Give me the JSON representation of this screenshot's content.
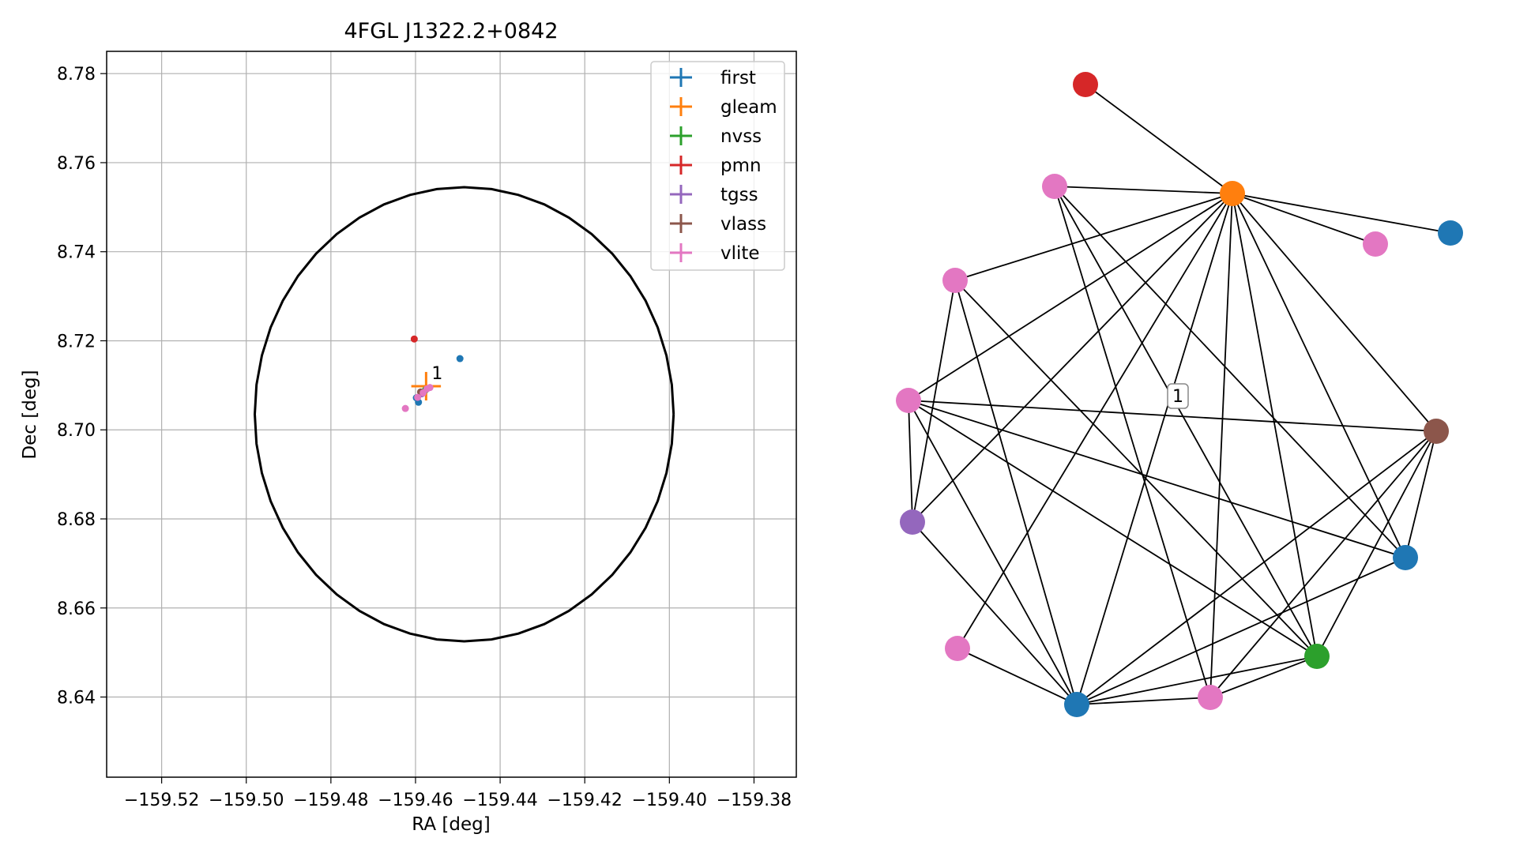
{
  "chart_data": [
    {
      "type": "scatter",
      "title": "4FGL J1322.2+0842",
      "xlabel": "RA [deg]",
      "ylabel": "Dec [deg]",
      "xlim": [
        -159.533,
        -159.37
      ],
      "ylim": [
        8.622,
        8.785
      ],
      "xticks": [
        -159.52,
        -159.5,
        -159.48,
        -159.46,
        -159.44,
        -159.42,
        -159.4,
        -159.38
      ],
      "xtick_labels": [
        "−159.52",
        "−159.50",
        "−159.48",
        "−159.46",
        "−159.44",
        "−159.42",
        "−159.40",
        "−159.38"
      ],
      "yticks": [
        8.64,
        8.66,
        8.68,
        8.7,
        8.72,
        8.74,
        8.76,
        8.78
      ],
      "ytick_labels": [
        "8.64",
        "8.66",
        "8.68",
        "8.70",
        "8.72",
        "8.74",
        "8.76",
        "8.78"
      ],
      "grid": true,
      "legend_position": "top-right",
      "ellipse": {
        "center": [
          -159.4485,
          8.7035
        ],
        "semi_axis_ra": 0.0495,
        "semi_axis_dec": 0.051,
        "color": "#000000"
      },
      "series": [
        {
          "name": "first",
          "color": "#1f77b4",
          "points": [
            [
              -159.4495,
              8.716
            ],
            [
              -159.4593,
              8.7062
            ],
            [
              -159.4598,
              8.7072
            ]
          ]
        },
        {
          "name": "gleam",
          "color": "#ff7f0e",
          "points": [
            [
              -159.4575,
              8.7098
            ]
          ],
          "xerr": 0.0035,
          "yerr": 0.0032
        },
        {
          "name": "nvss",
          "color": "#2ca02c",
          "points": [
            [
              -159.4576,
              8.709
            ]
          ]
        },
        {
          "name": "pmn",
          "color": "#d62728",
          "points": [
            [
              -159.4603,
              8.7204
            ]
          ]
        },
        {
          "name": "tgss",
          "color": "#9467bd",
          "points": [
            [
              -159.4585,
              8.7081
            ]
          ]
        },
        {
          "name": "vlass",
          "color": "#8c564b",
          "points": [
            [
              -159.4588,
              8.7085
            ]
          ]
        },
        {
          "name": "vlite",
          "color": "#e377c2",
          "points": [
            [
              -159.4624,
              8.7048
            ],
            [
              -159.4595,
              8.7073
            ],
            [
              -159.4582,
              8.7083
            ],
            [
              -159.4573,
              8.7092
            ],
            [
              -159.4566,
              8.7095
            ]
          ]
        }
      ],
      "annotation": {
        "text": "1",
        "x": -159.4562,
        "y": 8.7114
      }
    },
    {
      "type": "network",
      "edge_color": "#000000",
      "label_box": {
        "text": "1"
      },
      "nodes": [
        {
          "id": "n0",
          "color": "#d62728"
        },
        {
          "id": "n1",
          "color": "#ff7f0e"
        },
        {
          "id": "n2",
          "color": "#e377c2"
        },
        {
          "id": "n3",
          "color": "#1f77b4"
        },
        {
          "id": "n4",
          "color": "#e377c2"
        },
        {
          "id": "n5",
          "color": "#e377c2"
        },
        {
          "id": "n6",
          "color": "#e377c2"
        },
        {
          "id": "n7",
          "color": "#8c564b"
        },
        {
          "id": "n8",
          "color": "#9467bd"
        },
        {
          "id": "n9",
          "color": "#1f77b4"
        },
        {
          "id": "n10",
          "color": "#e377c2"
        },
        {
          "id": "n11",
          "color": "#2ca02c"
        },
        {
          "id": "n12",
          "color": "#e377c2"
        },
        {
          "id": "n13",
          "color": "#1f77b4"
        }
      ],
      "edges": [
        [
          "n0",
          "n1"
        ],
        [
          "n1",
          "n2"
        ],
        [
          "n1",
          "n3"
        ],
        [
          "n1",
          "n4"
        ],
        [
          "n1",
          "n5"
        ],
        [
          "n1",
          "n6"
        ],
        [
          "n1",
          "n7"
        ],
        [
          "n1",
          "n8"
        ],
        [
          "n1",
          "n9"
        ],
        [
          "n1",
          "n10"
        ],
        [
          "n1",
          "n11"
        ],
        [
          "n1",
          "n12"
        ],
        [
          "n1",
          "n13"
        ],
        [
          "n4",
          "n12"
        ],
        [
          "n4",
          "n11"
        ],
        [
          "n4",
          "n9"
        ],
        [
          "n5",
          "n8"
        ],
        [
          "n5",
          "n13"
        ],
        [
          "n5",
          "n11"
        ],
        [
          "n6",
          "n7"
        ],
        [
          "n6",
          "n8"
        ],
        [
          "n6",
          "n13"
        ],
        [
          "n6",
          "n9"
        ],
        [
          "n6",
          "n11"
        ],
        [
          "n7",
          "n13"
        ],
        [
          "n7",
          "n12"
        ],
        [
          "n7",
          "n11"
        ],
        [
          "n7",
          "n9"
        ],
        [
          "n8",
          "n13"
        ],
        [
          "n9",
          "n13"
        ],
        [
          "n10",
          "n13"
        ],
        [
          "n12",
          "n13"
        ],
        [
          "n11",
          "n13"
        ],
        [
          "n11",
          "n12"
        ]
      ]
    }
  ]
}
